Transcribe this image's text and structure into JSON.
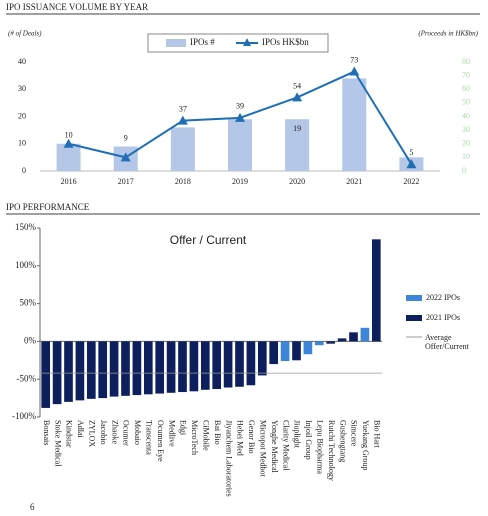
{
  "chart_data": [
    {
      "type": "combo",
      "title": "IPO ISSUANCE VOLUME BY YEAR",
      "y_label": "(# of Deals)",
      "y2_label": "(Proceeds in HK$bn)",
      "categories": [
        "2016",
        "2017",
        "2018",
        "2019",
        "2020",
        "2021",
        "2022"
      ],
      "series": [
        {
          "name": "IPOs #",
          "mark": "bar",
          "color": "#b4c7e7",
          "values": [
            10,
            9,
            16,
            19,
            19,
            34,
            5
          ],
          "value_labels": [
            "10",
            "9",
            null,
            null,
            "19",
            null,
            null
          ]
        },
        {
          "name": "IPOs HK$bn",
          "mark": "line",
          "axis": "y2",
          "color": "#1f6fb5",
          "values": [
            20,
            10,
            37,
            39,
            54,
            73,
            5
          ],
          "value_labels": [
            null,
            null,
            "37",
            "39",
            "54",
            "73",
            "5"
          ]
        }
      ],
      "ylim": [
        0,
        40
      ],
      "yticks": [
        0,
        10,
        20,
        30,
        40
      ],
      "y2lim": [
        0,
        80
      ],
      "y2ticks": [
        0,
        10,
        20,
        30,
        40,
        50,
        60,
        70,
        80
      ]
    },
    {
      "type": "bar",
      "title": "IPO PERFORMANCE",
      "subtitle": "Offer / Current",
      "categories": [
        "Bonsais",
        "Stoke Medical",
        "Kindstar",
        "Adlai",
        "ZYLOX",
        "Jacobio",
        "Zhaoke",
        "Ocumer",
        "Mobaio",
        "Transcenta",
        "Ocumen Eye",
        "Medlive",
        "Edgi",
        "MicroTech",
        "CiMobile",
        "Bai Bio",
        "Jiyanchem Laboratories",
        "Hebei Med",
        "Genor Bio",
        "Micropot Medbot",
        "Yonghe Medical",
        "Clarity Medical",
        "Jiuplight",
        "Injoil Group",
        "Lepu Biopharma",
        "Ruichi Technology",
        "Gushengtang",
        "Simcere",
        "Yuekang Group",
        "Bio Hart"
      ],
      "series": [
        {
          "name": "2022 IPOs",
          "color": "#3d85d8",
          "values": [
            null,
            null,
            null,
            null,
            null,
            null,
            null,
            null,
            null,
            null,
            null,
            null,
            null,
            null,
            null,
            null,
            null,
            null,
            null,
            null,
            null,
            -26,
            null,
            -17,
            -5,
            null,
            null,
            null,
            18,
            null
          ]
        },
        {
          "name": "2021 IPOs",
          "color": "#0d1f5c",
          "values": [
            -88,
            -83,
            -80,
            -78,
            -76,
            -75,
            -73,
            -72,
            -71,
            -70,
            -69,
            -68,
            -67,
            -66,
            -64,
            -63,
            -61,
            -60,
            -58,
            -45,
            -30,
            null,
            -25,
            null,
            null,
            -3,
            4,
            12,
            null,
            135
          ]
        }
      ],
      "average": {
        "name": "Average Offer/Current",
        "value": -42,
        "color": "#999999"
      },
      "ylim": [
        -100,
        150
      ],
      "yticks": [
        {
          "value": -100,
          "label": "-100%"
        },
        {
          "value": -50,
          "label": "-50%"
        },
        {
          "value": 0,
          "label": "0%"
        },
        {
          "value": 50,
          "label": "50%"
        },
        {
          "value": 100,
          "label": "100%"
        },
        {
          "value": 150,
          "label": "150%"
        }
      ]
    }
  ],
  "page_number": "6"
}
